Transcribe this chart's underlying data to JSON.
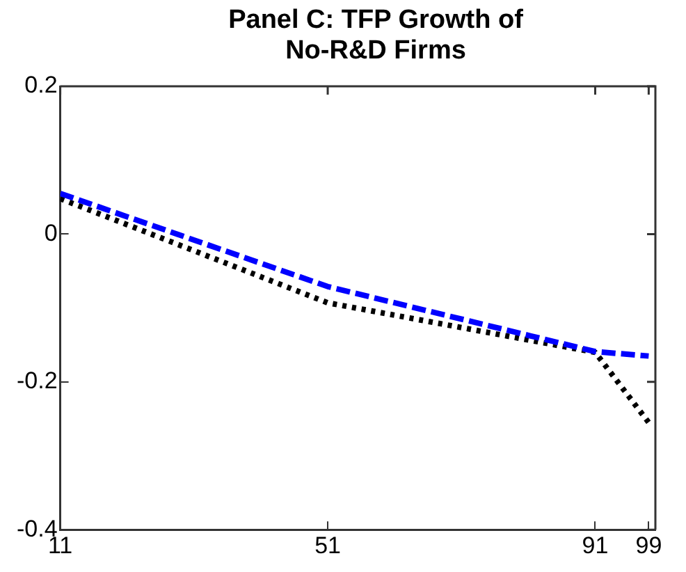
{
  "chart_data": {
    "type": "line",
    "title": "Panel C: TFP Growth of No-R&D Firms",
    "x": [
      11,
      51,
      91,
      99
    ],
    "series": [
      {
        "color": "#0000ff",
        "line_style": "dashed",
        "values": [
          0.055,
          -0.071,
          -0.159,
          -0.165
        ]
      },
      {
        "color": "#000000",
        "line_style": "dotted",
        "values": [
          0.048,
          -0.093,
          -0.16,
          -0.255
        ]
      }
    ],
    "xlim": [
      11,
      100
    ],
    "xticks": [
      11,
      51,
      91,
      99
    ],
    "ylim": [
      -0.4,
      0.2
    ],
    "yticks": [
      -0.4,
      -0.2,
      0,
      0.2
    ],
    "grid": false,
    "legend": false,
    "marker": "none"
  }
}
